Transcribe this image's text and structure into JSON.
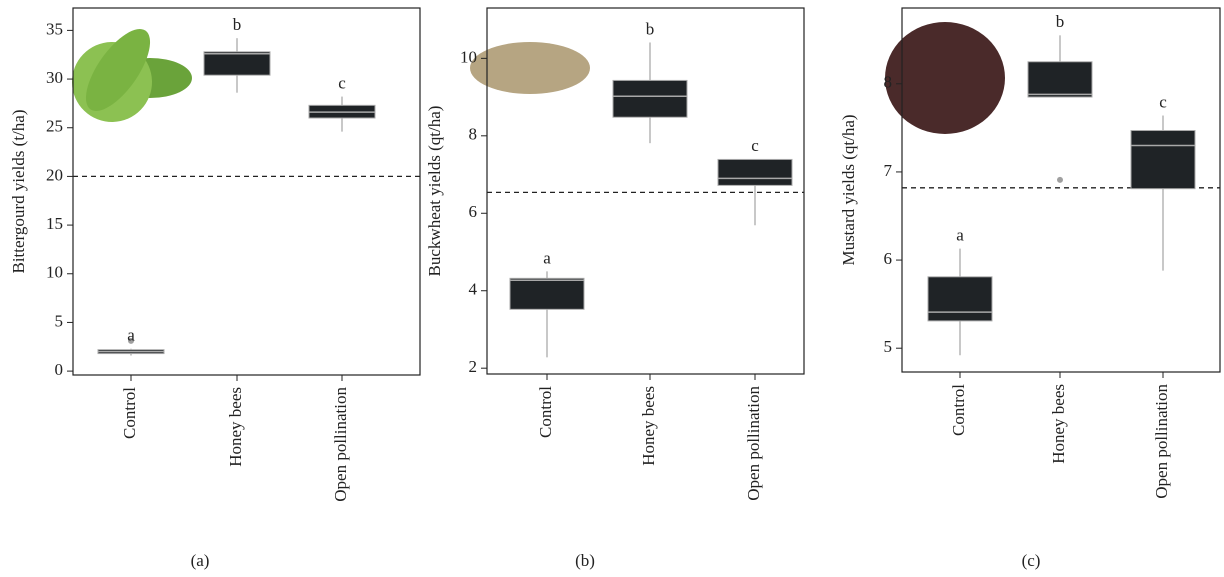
{
  "chart_data": [
    {
      "type": "box",
      "ylabel": "Bittergourd yields (t/ha)",
      "caption": "(a)",
      "categories": [
        "Control",
        "Honey bees",
        "Open pollination"
      ],
      "boxes": [
        {
          "whisker_low": 1.6,
          "q1": 1.8,
          "median": 2.0,
          "q3": 2.2,
          "whisker_high": 2.3,
          "outliers": [
            3.1
          ],
          "letter": "a"
        },
        {
          "whisker_low": 28.6,
          "q1": 30.4,
          "median": 32.6,
          "q3": 32.8,
          "whisker_high": 34.2,
          "outliers": [],
          "letter": "b"
        },
        {
          "whisker_low": 24.6,
          "q1": 26.0,
          "median": 26.6,
          "q3": 27.3,
          "whisker_high": 28.2,
          "outliers": [],
          "letter": "c"
        }
      ],
      "reference_line": 20.0,
      "ylim": [
        -0.4,
        37.3
      ],
      "yticks": [
        0,
        5,
        10,
        15,
        20,
        25,
        30,
        35
      ],
      "box_color": "#1f2326",
      "median_color": "#a8a8a8",
      "whisker_color": "#aaaaaa"
    },
    {
      "type": "box",
      "ylabel": "Buckwheat yields (qt/ha)",
      "caption": "(b)",
      "categories": [
        "Control",
        "Honey bees",
        "Open pollination"
      ],
      "boxes": [
        {
          "whisker_low": 2.28,
          "q1": 3.52,
          "median": 4.27,
          "q3": 4.32,
          "whisker_high": 4.5,
          "outliers": [],
          "letter": "a"
        },
        {
          "whisker_low": 7.81,
          "q1": 8.48,
          "median": 9.02,
          "q3": 9.43,
          "whisker_high": 10.41,
          "outliers": [],
          "letter": "b"
        },
        {
          "whisker_low": 5.69,
          "q1": 6.72,
          "median": 6.9,
          "q3": 7.39,
          "whisker_high": 7.4,
          "outliers": [],
          "letter": "c"
        }
      ],
      "reference_line": 6.54,
      "ylim": [
        1.85,
        11.3
      ],
      "yticks": [
        2,
        4,
        6,
        8,
        10
      ],
      "box_color": "#1f2326",
      "median_color": "#a8a8a8",
      "whisker_color": "#aaaaaa"
    },
    {
      "type": "box",
      "ylabel": "Mustard yields (qt/ha)",
      "caption": "(c)",
      "categories": [
        "Control",
        "Honey bees",
        "Open pollination"
      ],
      "boxes": [
        {
          "whisker_low": 4.92,
          "q1": 5.31,
          "median": 5.41,
          "q3": 5.81,
          "whisker_high": 6.13,
          "outliers": [],
          "letter": "a"
        },
        {
          "whisker_low": 7.85,
          "q1": 7.85,
          "median": 7.88,
          "q3": 8.25,
          "whisker_high": 8.55,
          "outliers": [
            6.91
          ],
          "letter": "b"
        },
        {
          "whisker_low": 5.88,
          "q1": 6.81,
          "median": 7.3,
          "q3": 7.47,
          "whisker_high": 7.64,
          "outliers": [],
          "letter": "c"
        }
      ],
      "reference_line": 6.82,
      "ylim": [
        4.73,
        8.86
      ],
      "yticks": [
        5,
        6,
        7,
        8
      ],
      "box_color": "#1f2326",
      "median_color": "#a8a8a8",
      "whisker_color": "#aaaaaa"
    }
  ]
}
